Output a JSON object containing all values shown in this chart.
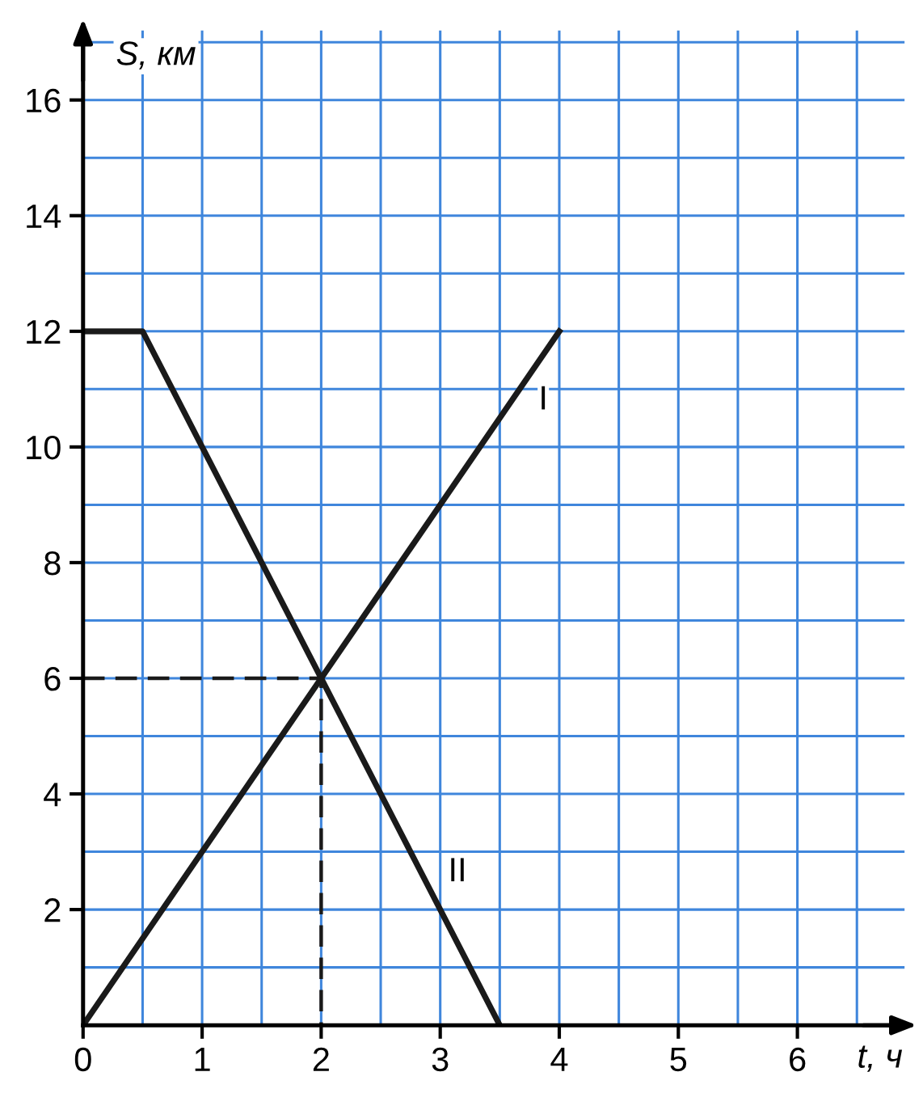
{
  "chart_data": {
    "type": "line",
    "xlabel": "t, ч",
    "ylabel": "S, км",
    "xlim": [
      0,
      6.9
    ],
    "ylim": [
      0,
      17.2
    ],
    "xticks": [
      {
        "value": 0,
        "label": "0"
      },
      {
        "value": 0.5,
        "label": null
      },
      1,
      {
        "value": 1.5,
        "label": null
      },
      2,
      {
        "value": 2.5,
        "label": null
      },
      3,
      {
        "value": 3.5,
        "label": null
      },
      4,
      {
        "value": 4.5,
        "label": null
      },
      5,
      {
        "value": 5.5,
        "label": null
      },
      6,
      {
        "value": 6.5,
        "label": null
      }
    ],
    "yticks": [
      {
        "value": 0,
        "label": null
      },
      {
        "value": 1,
        "label": null
      },
      2,
      {
        "value": 3,
        "label": null
      },
      4,
      {
        "value": 5,
        "label": null
      },
      6,
      {
        "value": 7,
        "label": null
      },
      8,
      {
        "value": 9,
        "label": null
      },
      10,
      {
        "value": 11,
        "label": null
      },
      12,
      {
        "value": 13,
        "label": null
      },
      14,
      {
        "value": 15,
        "label": null
      },
      16,
      {
        "value": 17,
        "label": null
      }
    ],
    "grid": true,
    "marker": "none",
    "series": [
      {
        "x": [
          0,
          4
        ],
        "values": [
          0,
          12
        ],
        "color": "#1a1a1a",
        "line_style": "solid"
      },
      {
        "x": [
          0,
          0.5,
          3.5
        ],
        "values": [
          12,
          12,
          0
        ],
        "color": "#1a1a1a",
        "line_style": "solid"
      },
      {
        "x": [
          0,
          2,
          2
        ],
        "values": [
          6,
          6,
          0
        ],
        "color": "#1a1a1a",
        "line_style": "dashed"
      }
    ],
    "annotations": [
      "I",
      "II"
    ]
  }
}
